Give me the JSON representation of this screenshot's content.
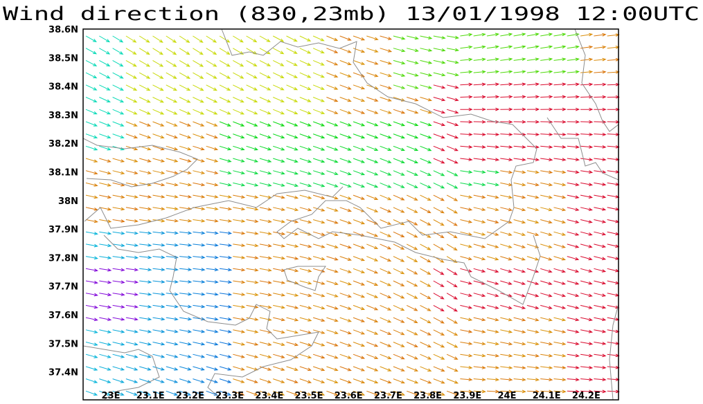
{
  "title": "Wind direction (830,23mb) 13/01/1998 12:00UTC",
  "map": {
    "x_labels": [
      "23E",
      "23.1E",
      "23.2E",
      "23.3E",
      "23.4E",
      "23.5E",
      "23.6E",
      "23.7E",
      "23.8E",
      "23.9E",
      "24E",
      "24.1E",
      "24.2E"
    ],
    "y_labels": [
      "38.6N",
      "38.5N",
      "38.4N",
      "38.3N",
      "38.2N",
      "38.1N",
      "38N",
      "37.9N",
      "37.8N",
      "37.7N",
      "37.6N",
      "37.5N",
      "37.4N"
    ]
  }
}
